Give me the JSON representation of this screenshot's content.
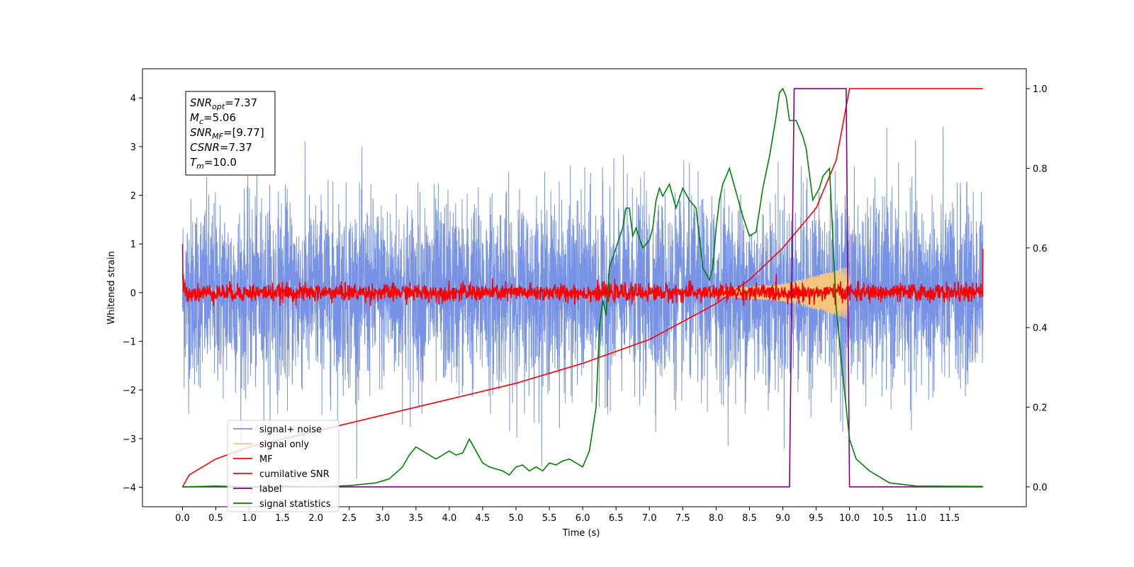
{
  "chart_data": {
    "type": "line",
    "title": "",
    "xlabel": "Time (s)",
    "ylabel": "Whitened strain",
    "xlim": [
      -0.6,
      12.65
    ],
    "ylim": [
      -4.4,
      4.6
    ],
    "y2lim": [
      -0.05,
      1.05
    ],
    "grid": false,
    "legend_position": "lower-left",
    "x_ticks": [
      "0.0",
      "0.5",
      "1.0",
      "1.5",
      "2.0",
      "2.5",
      "3.0",
      "3.5",
      "4.0",
      "4.5",
      "5.0",
      "5.5",
      "6.0",
      "6.5",
      "7.0",
      "7.5",
      "8.0",
      "8.5",
      "9.0",
      "9.5",
      "10.0",
      "10.5",
      "11.0",
      "11.5"
    ],
    "y_ticks": [
      "4",
      "3",
      "2",
      "1",
      "0",
      "−1",
      "−2",
      "−3",
      "−4"
    ],
    "y2_ticks": [
      "1.0",
      "0.8",
      "0.6",
      "0.4",
      "0.2",
      "0.0"
    ],
    "info_box": [
      {
        "label": "SNR",
        "sub": "opt",
        "value": "=7.37"
      },
      {
        "label": "M",
        "sub": "c",
        "value": "=5.06"
      },
      {
        "label": "SNR",
        "sub": "MF",
        "value": "=[9.77]"
      },
      {
        "label": "CSNR",
        "sub": "",
        "value": "=7.37"
      },
      {
        "label": "T",
        "sub": "m",
        "value": "=10.0"
      }
    ],
    "series": [
      {
        "name": "signal+ noise",
        "color": "#7893e6",
        "axis": "left",
        "kind": "noise",
        "x_range": [
          0,
          12
        ],
        "amplitude": 2.4
      },
      {
        "name": "signal only",
        "color": "#f5c77e",
        "axis": "left",
        "kind": "chirp",
        "x_range": [
          7.8,
          10.0
        ],
        "amplitude_envelope": [
          [
            7.8,
            0.05
          ],
          [
            9.0,
            0.18
          ],
          [
            9.5,
            0.35
          ],
          [
            10.0,
            0.55
          ]
        ]
      },
      {
        "name": "MF",
        "color": "#ff0000",
        "axis": "left",
        "kind": "noise",
        "x_range": [
          0,
          12
        ],
        "amplitude": 0.15,
        "spike_x": 0,
        "spike_y": 1.0
      },
      {
        "name": "cumilative SNR",
        "color": "#ff0000",
        "axis": "right",
        "kind": "curve",
        "x": [
          0,
          0.1,
          0.3,
          0.5,
          1,
          2,
          3,
          4,
          5,
          6,
          7,
          8,
          8.5,
          9,
          9.5,
          9.8,
          10.0,
          12.0
        ],
        "y": [
          0,
          0.03,
          0.05,
          0.07,
          0.1,
          0.14,
          0.18,
          0.22,
          0.26,
          0.31,
          0.37,
          0.46,
          0.52,
          0.6,
          0.7,
          0.82,
          1.0,
          1.0
        ]
      },
      {
        "name": "label",
        "color": "#800080",
        "axis": "right",
        "kind": "curve",
        "x": [
          0,
          9.1,
          9.17,
          9.95,
          10.0,
          12.0
        ],
        "y": [
          0,
          0,
          1,
          1,
          0,
          0
        ]
      },
      {
        "name": "signal statistics",
        "color": "#008000",
        "axis": "right",
        "kind": "curve",
        "x": [
          0,
          0.5,
          1,
          1.5,
          2,
          2.5,
          2.9,
          3.1,
          3.3,
          3.4,
          3.5,
          3.6,
          3.7,
          3.8,
          3.9,
          4.0,
          4.1,
          4.2,
          4.3,
          4.4,
          4.5,
          4.6,
          4.7,
          4.8,
          4.9,
          5.0,
          5.1,
          5.2,
          5.3,
          5.4,
          5.5,
          5.6,
          5.7,
          5.8,
          5.9,
          6.0,
          6.1,
          6.2,
          6.25,
          6.3,
          6.35,
          6.4,
          6.5,
          6.6,
          6.65,
          6.7,
          6.75,
          6.8,
          6.9,
          7.0,
          7.05,
          7.1,
          7.15,
          7.2,
          7.3,
          7.4,
          7.5,
          7.6,
          7.7,
          7.8,
          7.9,
          7.95,
          8.0,
          8.05,
          8.1,
          8.2,
          8.3,
          8.4,
          8.5,
          8.6,
          8.7,
          8.8,
          8.9,
          8.95,
          9.0,
          9.05,
          9.1,
          9.2,
          9.3,
          9.35,
          9.45,
          9.55,
          9.6,
          9.7,
          9.8,
          9.9,
          10.0,
          10.1,
          10.3,
          10.6,
          11.0,
          12.0
        ],
        "y": [
          0,
          0.002,
          0,
          0.002,
          0,
          0.003,
          0.01,
          0.02,
          0.05,
          0.08,
          0.1,
          0.09,
          0.08,
          0.07,
          0.08,
          0.09,
          0.08,
          0.085,
          0.12,
          0.09,
          0.06,
          0.05,
          0.045,
          0.04,
          0.03,
          0.05,
          0.055,
          0.04,
          0.05,
          0.04,
          0.06,
          0.055,
          0.065,
          0.07,
          0.06,
          0.05,
          0.09,
          0.2,
          0.4,
          0.47,
          0.43,
          0.55,
          0.6,
          0.65,
          0.7,
          0.7,
          0.63,
          0.65,
          0.6,
          0.62,
          0.65,
          0.72,
          0.75,
          0.73,
          0.76,
          0.7,
          0.75,
          0.72,
          0.7,
          0.55,
          0.52,
          0.55,
          0.65,
          0.72,
          0.76,
          0.8,
          0.74,
          0.68,
          0.63,
          0.64,
          0.75,
          0.83,
          0.93,
          0.99,
          1.0,
          0.98,
          0.92,
          0.92,
          0.88,
          0.85,
          0.72,
          0.75,
          0.78,
          0.8,
          0.45,
          0.28,
          0.12,
          0.07,
          0.04,
          0.01,
          0.002,
          0.001
        ]
      }
    ]
  }
}
